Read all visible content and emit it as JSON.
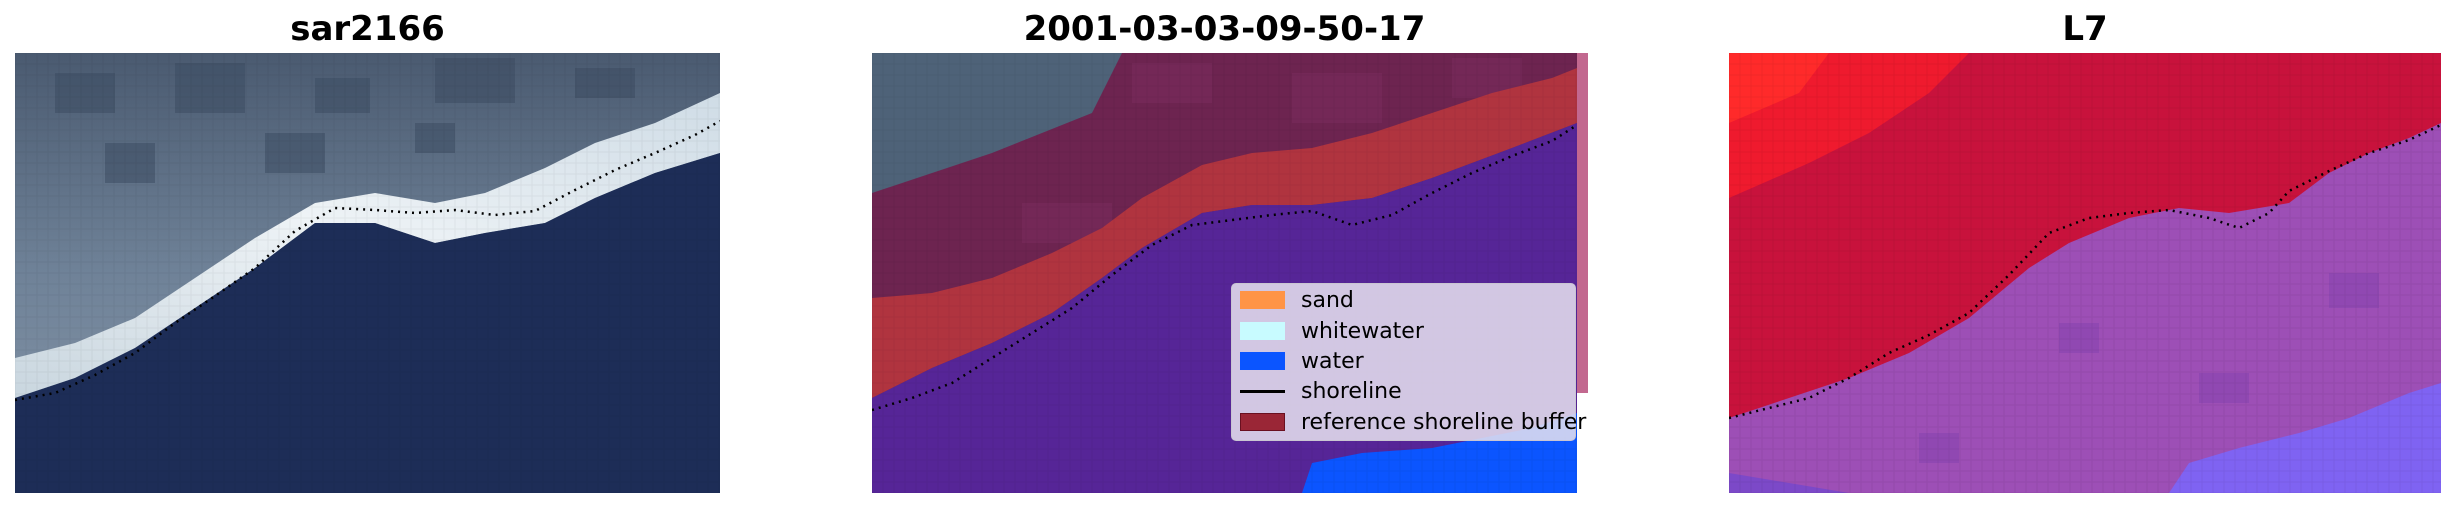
{
  "panels": [
    {
      "title": "sar2166"
    },
    {
      "title": "2001-03-03-09-50-17"
    },
    {
      "title": "L7"
    }
  ],
  "legend": {
    "items": [
      {
        "label": "sand",
        "color": "#ff9447",
        "kind": "patch"
      },
      {
        "label": "whitewater",
        "color": "#c8fbff",
        "kind": "patch"
      },
      {
        "label": "water",
        "color": "#0b55ff",
        "kind": "patch"
      },
      {
        "label": "shoreline",
        "color": "#000000",
        "kind": "line"
      },
      {
        "label": "reference shoreline buffer",
        "color": "#9a2636",
        "kind": "patch"
      }
    ]
  },
  "colors": {
    "ocean": "#1d2d57",
    "surf": "#dde6ee",
    "land": "#6e7f92",
    "classified_water": "#562597",
    "classified_land": "#6d2450",
    "buffer": "#b0343f",
    "mndwi_positive": "#c8123c",
    "mndwi_negative": "#9d4fb6"
  }
}
